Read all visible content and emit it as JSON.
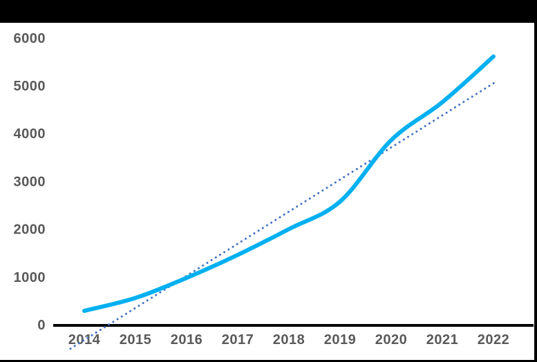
{
  "window": {
    "background": "#ffffff",
    "frame_color": "#000000"
  },
  "chart_data": {
    "type": "line",
    "title": "",
    "x": [
      "2014",
      "2015",
      "2016",
      "2017",
      "2018",
      "2019",
      "2020",
      "2021",
      "2022"
    ],
    "series": [
      {
        "name": "main-series",
        "style": "solid",
        "color": "#00B0F0",
        "stroke_width": 6,
        "values": [
          290,
          560,
          980,
          1460,
          2000,
          2575,
          3860,
          4655,
          5610
        ]
      },
      {
        "name": "linear-trendline",
        "style": "dotted",
        "color": "#4472C4",
        "stroke_width": 3,
        "value_at_2014": -320,
        "value_at_2022": 5050
      }
    ],
    "xlabel": "",
    "ylabel": "",
    "ylim": [
      0,
      6000
    ],
    "y_ticks": [
      "0",
      "1000",
      "2000",
      "3000",
      "4000",
      "5000",
      "6000"
    ],
    "y_tick_values": [
      0,
      1000,
      2000,
      3000,
      4000,
      5000,
      6000
    ],
    "grid": false,
    "legend": false,
    "tick_label_color": "#595959",
    "axis_line_color": "#000000"
  }
}
